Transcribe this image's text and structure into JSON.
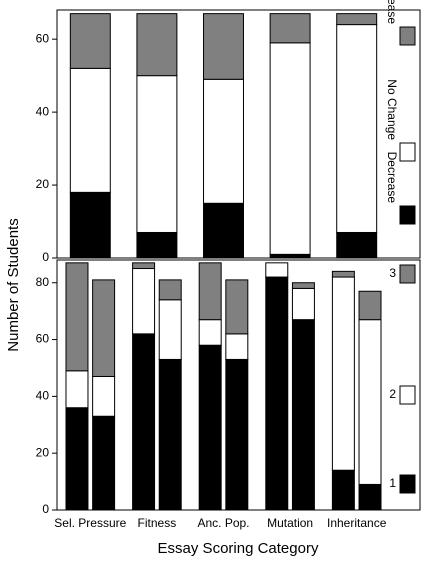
{
  "chart_data": [
    {
      "type": "stacked_bar",
      "y_label": "Number of Students",
      "ylim": [
        0,
        68
      ],
      "yticks": [
        0,
        20,
        40,
        60
      ],
      "series": [
        {
          "name": "Decrease",
          "color": "#000000",
          "values": [
            18,
            7,
            15,
            1,
            7
          ]
        },
        {
          "name": "No Change",
          "color": "#ffffff",
          "values": [
            34,
            43,
            34,
            58,
            57
          ]
        },
        {
          "name": "Increase",
          "color": "#808080",
          "values": [
            15,
            17,
            18,
            8,
            3
          ]
        }
      ]
    },
    {
      "type": "grouped_stacked_bar",
      "x_label": "Essay Scoring Category",
      "categories": [
        "Sel. Pressure",
        "Fitness",
        "Anc. Pop.",
        "Mutation",
        "Inheritance"
      ],
      "ylim": [
        0,
        88
      ],
      "yticks": [
        0,
        20,
        40,
        60,
        80
      ],
      "series": [
        {
          "name": "1",
          "color": "#000000",
          "values": [
            [
              36,
              33
            ],
            [
              62,
              53
            ],
            [
              58,
              53
            ],
            [
              82,
              67
            ],
            [
              14,
              9
            ]
          ]
        },
        {
          "name": "2",
          "color": "#ffffff",
          "values": [
            [
              13,
              14
            ],
            [
              23,
              21
            ],
            [
              9,
              9
            ],
            [
              5,
              11
            ],
            [
              68,
              58
            ]
          ]
        },
        {
          "name": "3",
          "color": "#808080",
          "values": [
            [
              38,
              34
            ],
            [
              2,
              7
            ],
            [
              20,
              19
            ],
            [
              0,
              2
            ],
            [
              2,
              10
            ]
          ]
        }
      ]
    }
  ]
}
